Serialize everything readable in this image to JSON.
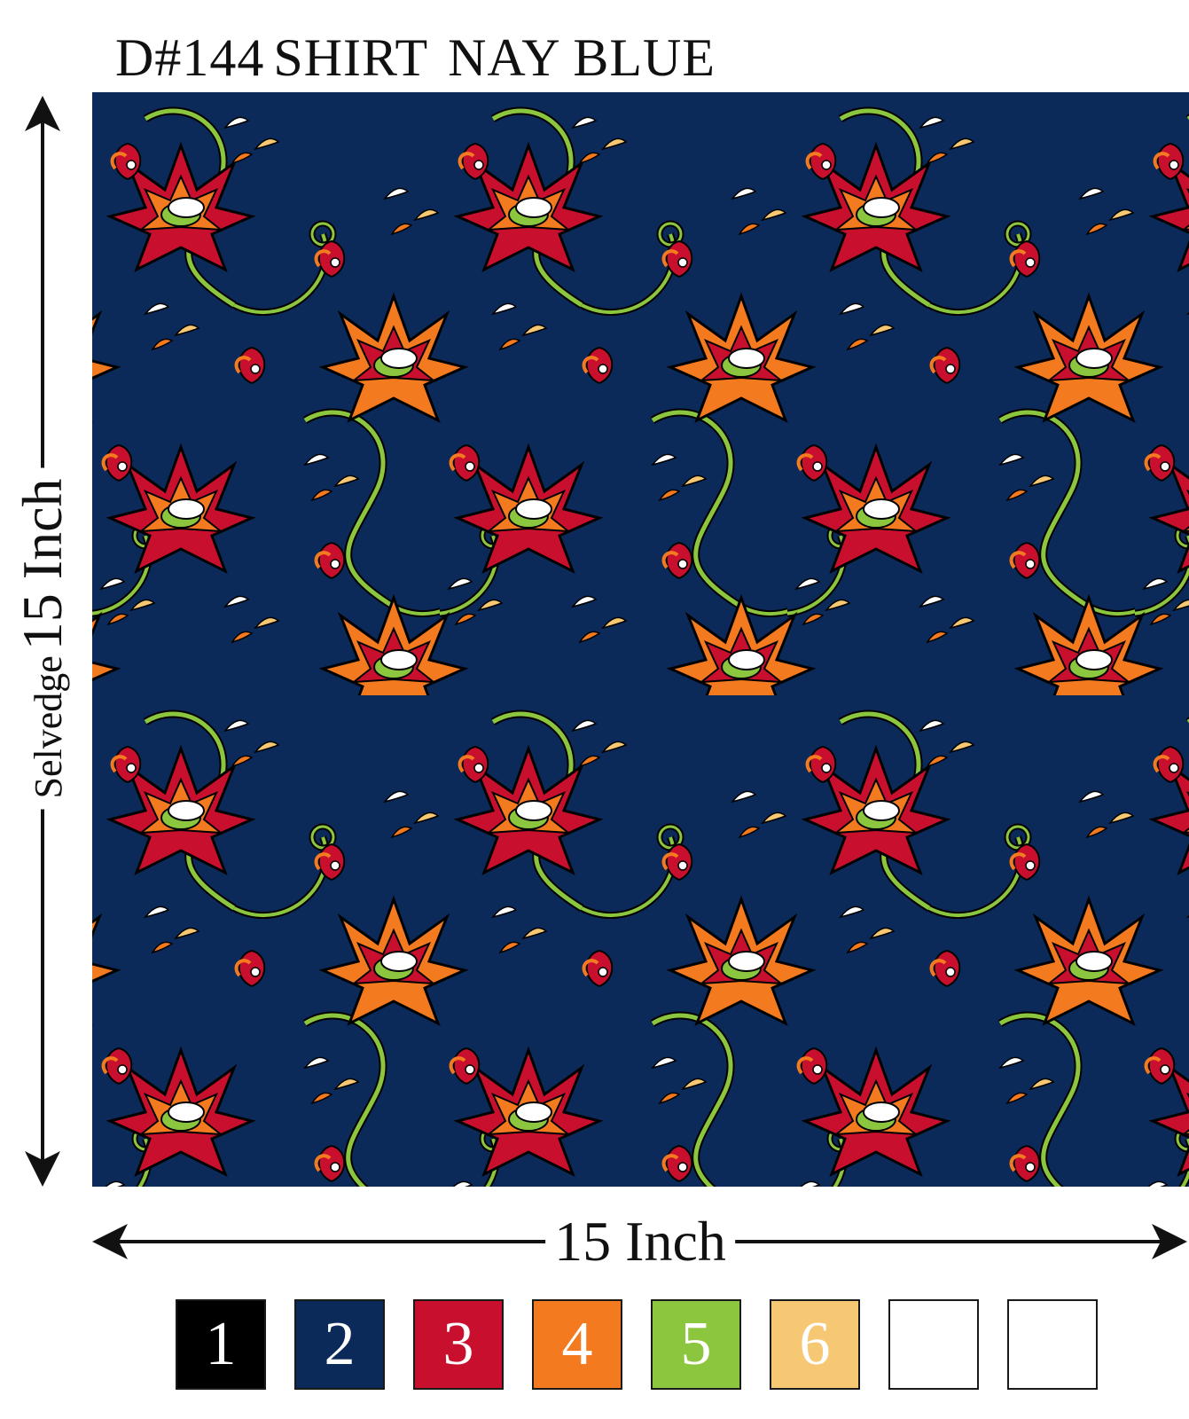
{
  "design": {
    "code": "D#144",
    "garment": "SHIRT",
    "color_name": "NAY BLUE"
  },
  "dimensions": {
    "vertical_label_prefix": "Selvedge",
    "vertical_measure": "15 Inch",
    "horizontal_measure": "15 Inch"
  },
  "pattern": {
    "background_color": "#0b2a5a",
    "motif": "floral-lotus-vine-icon",
    "colors": {
      "outline": "#000000",
      "red": "#c8102e",
      "orange": "#f47a1f",
      "green": "#8cc63f",
      "peach": "#f7c873",
      "white": "#ffffff"
    }
  },
  "palette": [
    {
      "label": "1",
      "color": "#000000"
    },
    {
      "label": "2",
      "color": "#0b2a5a"
    },
    {
      "label": "3",
      "color": "#c8102e"
    },
    {
      "label": "4",
      "color": "#f47a1f"
    },
    {
      "label": "5",
      "color": "#8cc63f"
    },
    {
      "label": "6",
      "color": "#f7c873"
    },
    {
      "label": "",
      "color": "#ffffff"
    },
    {
      "label": "",
      "color": "#ffffff"
    }
  ]
}
